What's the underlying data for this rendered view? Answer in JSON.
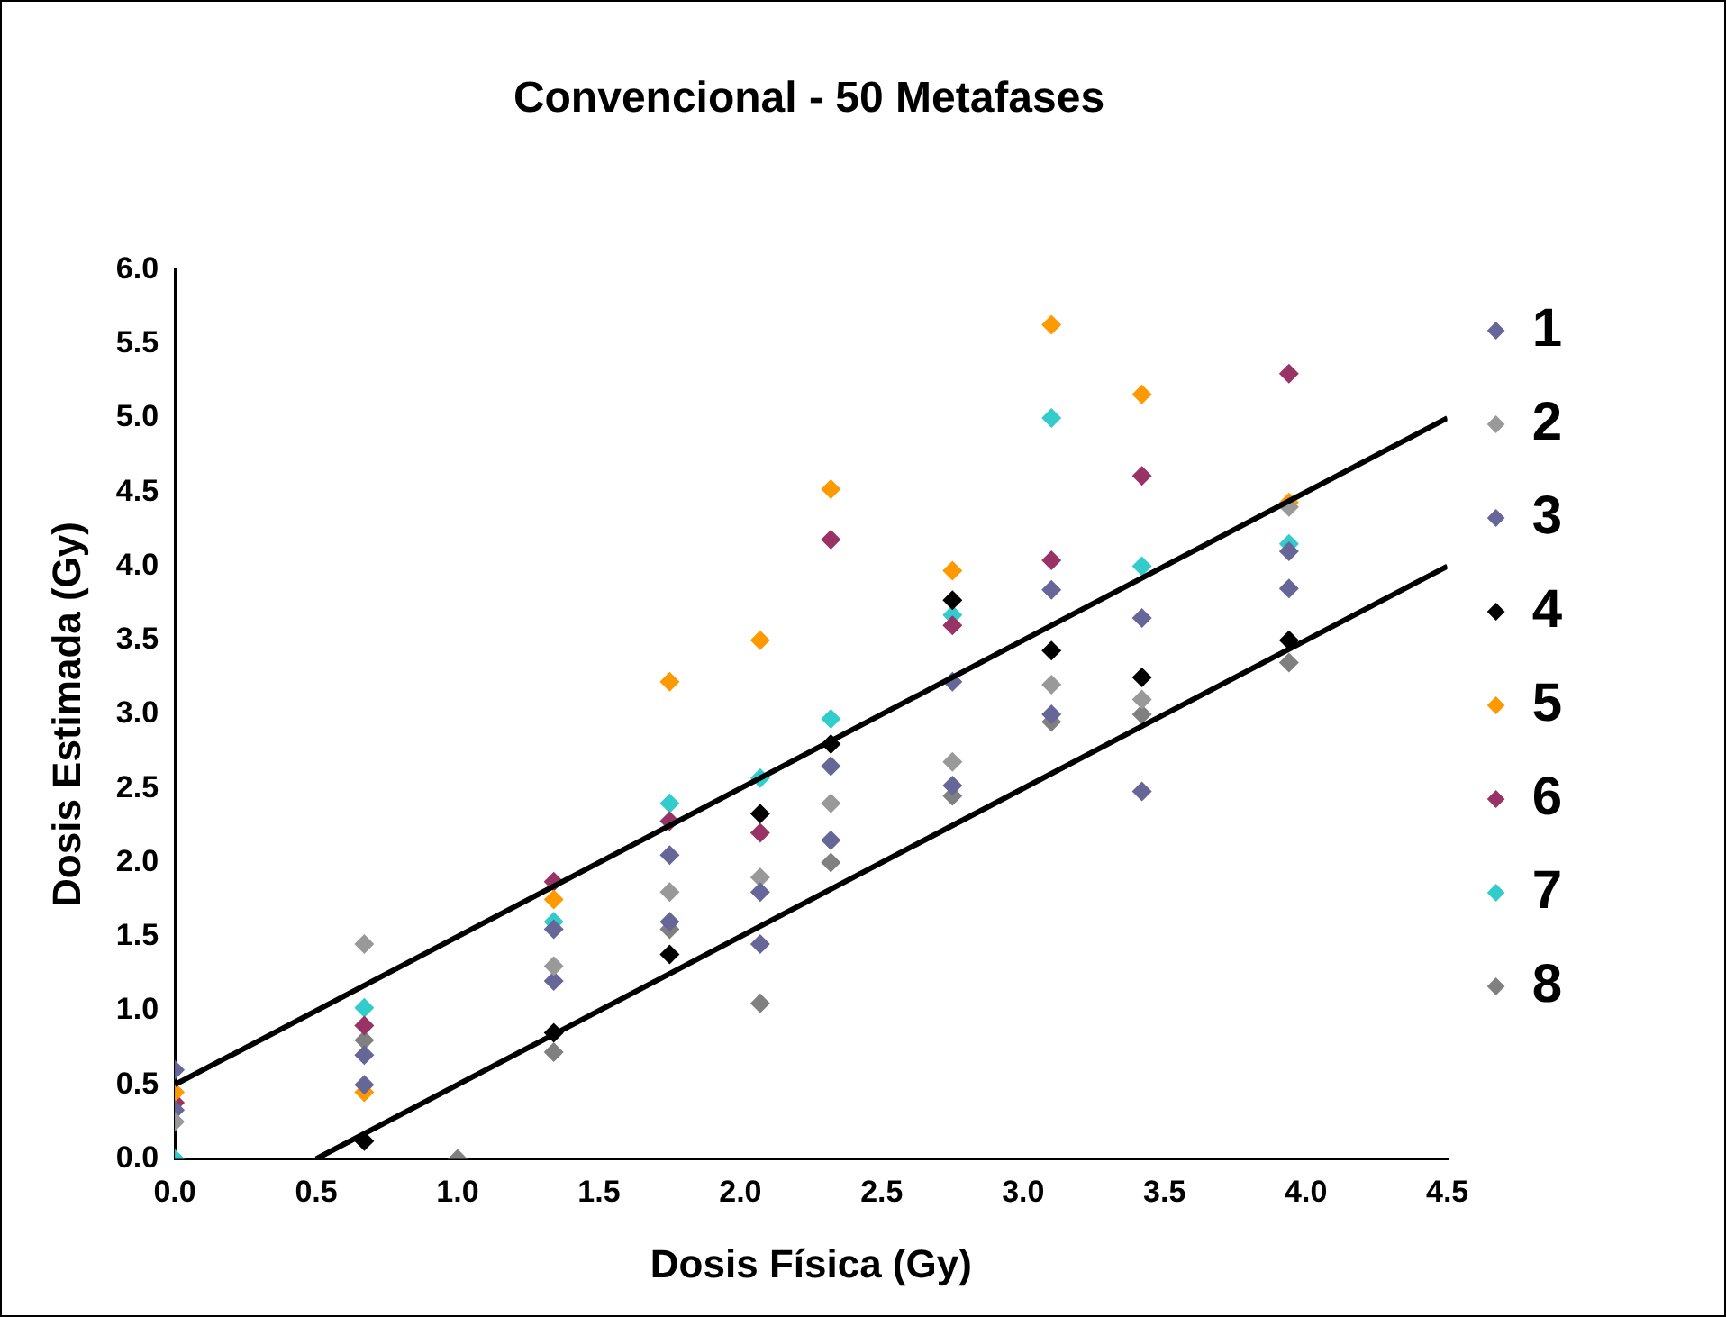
{
  "chart_data": {
    "type": "scatter",
    "title": "Convencional - 50 Metafases",
    "xlabel": "Dosis Física (Gy)",
    "ylabel": "Dosis Estimada (Gy)",
    "x": [
      0,
      0.67,
      1.0,
      1.34,
      1.75,
      2.07,
      2.32,
      2.75,
      3.1,
      3.42,
      3.94
    ],
    "xlim": [
      0,
      4.5
    ],
    "ylim": [
      0,
      6
    ],
    "xticks": [
      {
        "value": 0,
        "label": "0.0"
      },
      {
        "value": 0.5,
        "label": "0.5"
      },
      {
        "value": 1,
        "label": "1.0"
      },
      {
        "value": 1.5,
        "label": "1.5"
      },
      {
        "value": 2,
        "label": "2.0"
      },
      {
        "value": 2.5,
        "label": "2.5"
      },
      {
        "value": 3,
        "label": "3.0"
      },
      {
        "value": 3.5,
        "label": "3.5"
      },
      {
        "value": 4,
        "label": "4.0"
      },
      {
        "value": 4.5,
        "label": "4.5"
      }
    ],
    "yticks": [
      {
        "value": 0,
        "label": "0.0"
      },
      {
        "value": 0.5,
        "label": "0.5"
      },
      {
        "value": 1,
        "label": "1.0"
      },
      {
        "value": 1.5,
        "label": "1.5"
      },
      {
        "value": 2,
        "label": "2.0"
      },
      {
        "value": 2.5,
        "label": "2.5"
      },
      {
        "value": 3,
        "label": "3.0"
      },
      {
        "value": 3.5,
        "label": "3.5"
      },
      {
        "value": 4,
        "label": "4.0"
      },
      {
        "value": 4.5,
        "label": "4.5"
      },
      {
        "value": 5,
        "label": "5.0"
      },
      {
        "value": 5.5,
        "label": "5.5"
      },
      {
        "value": 6,
        "label": "6.0"
      }
    ],
    "grid": false,
    "legend": "right",
    "marker": "diamond",
    "series": [
      {
        "name": "1",
        "color": "#666699",
        "values": [
          0.6,
          0.5,
          null,
          1.55,
          2.05,
          1.8,
          2.65,
          3.22,
          3.84,
          3.65,
          4.1
        ]
      },
      {
        "name": "2",
        "color": "#999999",
        "values": [
          0.25,
          1.45,
          null,
          1.3,
          1.8,
          1.9,
          2.4,
          2.68,
          3.2,
          3.1,
          4.4
        ]
      },
      {
        "name": "3",
        "color": "#666699",
        "values": [
          0.33,
          0.7,
          null,
          1.2,
          1.6,
          1.45,
          2.15,
          2.52,
          3.0,
          2.48,
          3.85
        ]
      },
      {
        "name": "4",
        "color": "#000000",
        "values": [
          null,
          0.12,
          null,
          0.85,
          1.38,
          2.33,
          2.8,
          3.77,
          3.43,
          3.25,
          3.5
        ]
      },
      {
        "name": "5",
        "color": "#ff9900",
        "values": [
          0.45,
          0.45,
          null,
          1.75,
          3.22,
          3.5,
          4.52,
          3.97,
          5.63,
          5.16,
          4.43
        ]
      },
      {
        "name": "6",
        "color": "#993366",
        "values": [
          0.38,
          0.9,
          null,
          1.87,
          2.28,
          2.2,
          4.18,
          3.6,
          4.04,
          4.61,
          5.3
        ]
      },
      {
        "name": "7",
        "color": "#33cccc",
        "values": [
          0.0,
          1.02,
          null,
          1.6,
          2.4,
          2.57,
          2.97,
          3.67,
          5.0,
          4.0,
          4.15
        ]
      },
      {
        "name": "8",
        "color": "#808080",
        "values": [
          null,
          0.8,
          0.0,
          0.72,
          1.55,
          1.05,
          2.0,
          2.45,
          2.95,
          3.0,
          3.35
        ]
      },
      {
        "type": "line",
        "color": "#000000",
        "marker": "none",
        "x": [
          0,
          4.5
        ],
        "values": [
          0.5,
          5.0
        ]
      },
      {
        "type": "line",
        "color": "#000000",
        "marker": "none",
        "x": [
          0.5,
          4.5
        ],
        "values": [
          0,
          4.0
        ]
      }
    ]
  }
}
